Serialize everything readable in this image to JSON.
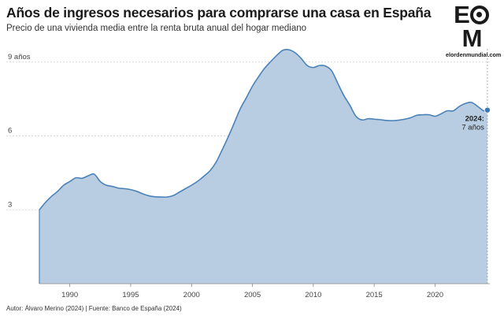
{
  "header": {
    "title": "Años de ingresos necesarios para comprarse una casa en España",
    "subtitle": "Precio de una vivienda media entre la renta bruta anual del hogar mediano"
  },
  "logo": {
    "mark": "EOM",
    "subtitle": "elordenmundial.com"
  },
  "footer": {
    "source": "Autor: Álvaro Merino (2024) | Fuente: Banco de España (2024)"
  },
  "chart_data": {
    "type": "area",
    "title": "Años de ingresos necesarios para comprarse una casa en España",
    "subtitle": "Precio de una vivienda media entre la renta bruta anual del hogar mediano",
    "xlabel": "",
    "ylabel": "",
    "xlim": [
      1987.5,
      2024.5
    ],
    "ylim": [
      0,
      9.6
    ],
    "grid": true,
    "x_ticks": [
      1990,
      1995,
      2000,
      2005,
      2010,
      2015,
      2020
    ],
    "x_tick_labels": [
      "1990",
      "1995",
      "2000",
      "2005",
      "2010",
      "2015",
      "2020"
    ],
    "y_ticks": [
      3,
      6,
      9
    ],
    "y_tick_labels": [
      "3",
      "6",
      "9 años"
    ],
    "series": [
      {
        "color": "#b8cde2",
        "line_color": "#4a82b8",
        "points": [
          [
            1987.5,
            3.0
          ],
          [
            1988.0,
            3.3
          ],
          [
            1988.5,
            3.55
          ],
          [
            1989.0,
            3.75
          ],
          [
            1989.5,
            4.0
          ],
          [
            1990.0,
            4.15
          ],
          [
            1990.5,
            4.3
          ],
          [
            1991.0,
            4.28
          ],
          [
            1991.5,
            4.38
          ],
          [
            1992.0,
            4.45
          ],
          [
            1992.5,
            4.15
          ],
          [
            1993.0,
            4.0
          ],
          [
            1993.5,
            3.95
          ],
          [
            1994.0,
            3.88
          ],
          [
            1994.5,
            3.86
          ],
          [
            1995.0,
            3.82
          ],
          [
            1995.5,
            3.75
          ],
          [
            1996.0,
            3.65
          ],
          [
            1996.5,
            3.57
          ],
          [
            1997.0,
            3.53
          ],
          [
            1997.5,
            3.52
          ],
          [
            1998.0,
            3.52
          ],
          [
            1998.5,
            3.58
          ],
          [
            1999.0,
            3.72
          ],
          [
            1999.5,
            3.86
          ],
          [
            2000.0,
            4.0
          ],
          [
            2000.5,
            4.16
          ],
          [
            2001.0,
            4.36
          ],
          [
            2001.5,
            4.58
          ],
          [
            2002.0,
            4.92
          ],
          [
            2002.5,
            5.42
          ],
          [
            2003.0,
            5.95
          ],
          [
            2003.5,
            6.52
          ],
          [
            2004.0,
            7.1
          ],
          [
            2004.5,
            7.55
          ],
          [
            2005.0,
            8.02
          ],
          [
            2005.5,
            8.4
          ],
          [
            2006.0,
            8.75
          ],
          [
            2006.5,
            9.02
          ],
          [
            2007.0,
            9.27
          ],
          [
            2007.5,
            9.48
          ],
          [
            2008.0,
            9.5
          ],
          [
            2008.5,
            9.38
          ],
          [
            2009.0,
            9.15
          ],
          [
            2009.5,
            8.86
          ],
          [
            2010.0,
            8.78
          ],
          [
            2010.5,
            8.86
          ],
          [
            2011.0,
            8.84
          ],
          [
            2011.5,
            8.65
          ],
          [
            2012.0,
            8.15
          ],
          [
            2012.5,
            7.65
          ],
          [
            2013.0,
            7.25
          ],
          [
            2013.5,
            6.8
          ],
          [
            2014.0,
            6.65
          ],
          [
            2014.5,
            6.7
          ],
          [
            2015.0,
            6.68
          ],
          [
            2015.5,
            6.66
          ],
          [
            2016.0,
            6.63
          ],
          [
            2016.5,
            6.62
          ],
          [
            2017.0,
            6.64
          ],
          [
            2017.5,
            6.68
          ],
          [
            2018.0,
            6.74
          ],
          [
            2018.5,
            6.84
          ],
          [
            2019.0,
            6.86
          ],
          [
            2019.5,
            6.86
          ],
          [
            2020.0,
            6.8
          ],
          [
            2020.5,
            6.9
          ],
          [
            2021.0,
            7.02
          ],
          [
            2021.5,
            7.02
          ],
          [
            2022.0,
            7.2
          ],
          [
            2022.5,
            7.32
          ],
          [
            2023.0,
            7.36
          ],
          [
            2023.5,
            7.2
          ],
          [
            2024.0,
            7.02
          ],
          [
            2024.3,
            7.05
          ]
        ]
      }
    ],
    "annotations": [
      {
        "x": 2024.3,
        "y": 7.05,
        "year_label": "2024:",
        "value_label": "7 años"
      }
    ]
  }
}
